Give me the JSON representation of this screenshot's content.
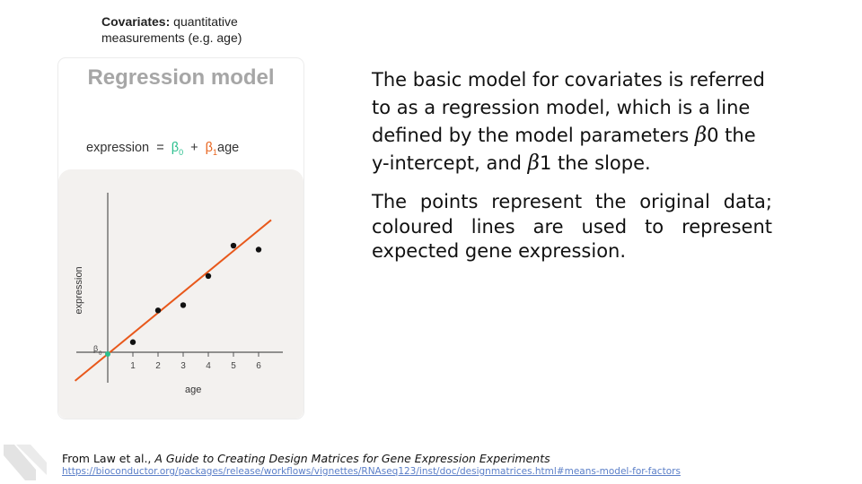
{
  "subtitle": {
    "bold": "Covariates:",
    "rest": " quantitative measurements (e.g. age)"
  },
  "panel": {
    "title": "Regression model",
    "equation": {
      "lhs": "expression",
      "eq": "=",
      "b0": "β",
      "b0_sub": "0",
      "plus": "+",
      "b1": "β",
      "b1_sub": "1",
      "term": "age"
    }
  },
  "chart_data": {
    "type": "scatter",
    "xlabel": "age",
    "ylabel": "expression",
    "x_ticks": [
      1,
      2,
      3,
      4,
      5,
      6
    ],
    "xlim": [
      -1.3,
      6.5
    ],
    "ylim": [
      -0.8,
      6.1
    ],
    "points": [
      {
        "x": 1,
        "y": 0.45
      },
      {
        "x": 2,
        "y": 1.65
      },
      {
        "x": 3,
        "y": 1.85
      },
      {
        "x": 4,
        "y": 2.95
      },
      {
        "x": 5,
        "y": 4.1
      },
      {
        "x": 6,
        "y": 3.95
      }
    ],
    "fit_line": {
      "intercept": 0.0,
      "slope": 0.78,
      "x_start": -1.3,
      "x_end": 6.5,
      "color": "#e8581b"
    },
    "intercept_marker": {
      "label": "β",
      "label_sub": "0",
      "color": "#2bbf8e"
    },
    "grid": false
  },
  "text": {
    "para1_a": "The basic model for covariates is referred to as a regression model, which is a line defined by the model parameters ",
    "beta0": "β",
    "para1_b": "0 the y-intercept, and ",
    "beta1": "β",
    "para1_c": "1 the slope.",
    "para2": "The points represent the original data; coloured lines are used to represent expected gene expression."
  },
  "footer": {
    "source_prefix": "From Law et al., ",
    "source_title": "A Guide to Creating Design Matrices for Gene Expression Experiments",
    "link": "https://bioconductor.org/packages/release/workflows/vignettes/RNAseq123/inst/doc/designmatrices.html#means-model-for-factors"
  },
  "colors": {
    "fit_line": "#e8581b",
    "beta0": "#2bbf8e",
    "beta1": "#e8651f",
    "panel_bg": "#f3f1ef",
    "link": "#5b7fc8"
  }
}
